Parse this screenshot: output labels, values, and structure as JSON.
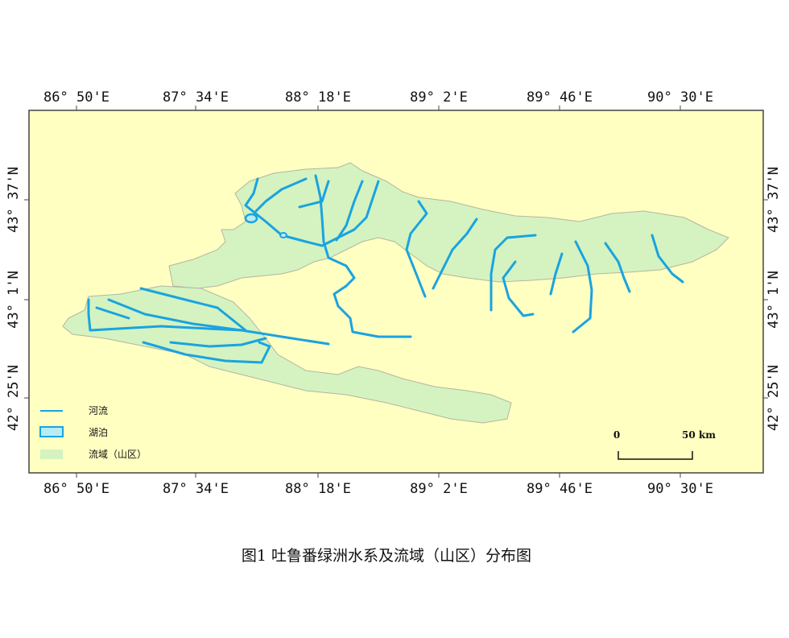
{
  "map": {
    "top_labels": [
      "86° 50'E",
      "87° 34'E",
      "88° 18'E",
      "89° 2'E",
      "89° 46'E",
      "90° 30'E"
    ],
    "bottom_labels": [
      "86° 50'E",
      "87° 34'E",
      "88° 18'E",
      "89° 2'E",
      "89° 46'E",
      "90° 30'E"
    ],
    "left_labels": [
      "43° 37'N",
      "43° 1'N",
      "42° 25'N"
    ],
    "right_labels": [
      "43° 37'N",
      "43° 1'N",
      "42° 25'N"
    ],
    "legend": [
      {
        "label": "河流"
      },
      {
        "label": "湖泊"
      },
      {
        "label": "流域（山区）"
      }
    ],
    "scale_bar": {
      "start": "0",
      "end": "50 km"
    }
  },
  "caption": "图1 吐鲁番绿洲水系及流域（山区）分布图"
}
